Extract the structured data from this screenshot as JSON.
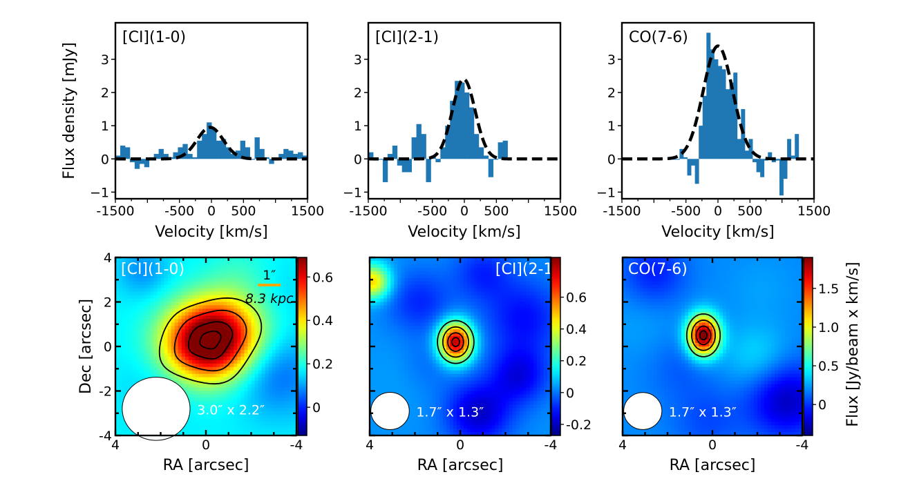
{
  "chart_data": [
    {
      "type": "bar",
      "title": "[CI](1-0)",
      "xlabel": "Velocity [km/s]",
      "ylabel": "Flux density [mJy]",
      "xlim": [
        -1500,
        1500
      ],
      "ylim": [
        -1.2,
        4.1
      ],
      "xticks": [
        -1500,
        -500,
        0,
        500,
        1500
      ],
      "xtick_labels": [
        "-1500",
        "-500",
        "0",
        "500",
        "1500"
      ],
      "yticks": [
        -1,
        0,
        1,
        2,
        3
      ],
      "ytick_labels": [
        "−1",
        "0",
        "1",
        "2",
        "3"
      ],
      "series": [
        {
          "name": "spectrum",
          "kind": "histogram",
          "bin_width": 75,
          "x": [
            -1462,
            -1387,
            -1312,
            -1237,
            -1162,
            -1087,
            -1012,
            -937,
            -862,
            -787,
            -712,
            -637,
            -562,
            -487,
            -412,
            -337,
            -262,
            -187,
            -112,
            -37,
            37,
            112,
            187,
            262,
            337,
            412,
            487,
            562,
            637,
            712,
            787,
            862,
            937,
            1012,
            1087,
            1162,
            1237,
            1312,
            1387,
            1462
          ],
          "values": [
            0.1,
            0.4,
            0.35,
            -0.1,
            -0.3,
            -0.15,
            -0.25,
            0.05,
            0.15,
            0.3,
            0.15,
            0.05,
            0.2,
            0.35,
            0.45,
            0.15,
            0.05,
            0.55,
            0.75,
            1.1,
            0.9,
            0.55,
            0.6,
            0.35,
            0.15,
            0.25,
            0.55,
            0.35,
            0.0,
            0.65,
            0.3,
            0.05,
            -0.15,
            -0.05,
            0.15,
            0.3,
            0.25,
            0.15,
            0.2,
            0.1
          ]
        },
        {
          "name": "gaussian fit",
          "kind": "line",
          "style": "dashed",
          "amplitude": 0.95,
          "center": -20,
          "fwhm": 480
        }
      ]
    },
    {
      "type": "bar",
      "title": "[CI](2-1)",
      "xlabel": "Velocity [km/s]",
      "ylabel": "",
      "xlim": [
        -1500,
        1500
      ],
      "ylim": [
        -1.2,
        4.1
      ],
      "xticks": [
        -1500,
        -500,
        0,
        500,
        1500
      ],
      "xtick_labels": [
        "-1500",
        "-500",
        "0",
        "500",
        "1500"
      ],
      "yticks": [
        -1,
        0,
        1,
        2,
        3
      ],
      "ytick_labels": [
        "−1",
        "0",
        "1",
        "2",
        "3"
      ],
      "series": [
        {
          "name": "spectrum",
          "kind": "histogram",
          "bin_width": 75,
          "x": [
            -1462,
            -1387,
            -1312,
            -1237,
            -1162,
            -1087,
            -1012,
            -937,
            -862,
            -787,
            -712,
            -637,
            -562,
            -487,
            -412,
            -337,
            -262,
            -187,
            -112,
            -37,
            37,
            112,
            187,
            262,
            337,
            412,
            487,
            562,
            637
          ],
          "values": [
            0.2,
            -0.05,
            0.0,
            -0.7,
            0.15,
            0.4,
            -0.2,
            -0.4,
            -0.4,
            0.65,
            1.05,
            0.75,
            -0.7,
            0.1,
            -0.1,
            0.35,
            1.0,
            1.75,
            2.35,
            2.3,
            2.0,
            1.55,
            0.75,
            0.35,
            0.1,
            -0.55,
            0.0,
            0.5,
            0.55
          ]
        },
        {
          "name": "gaussian fit",
          "kind": "line",
          "style": "dashed",
          "amplitude": 2.4,
          "center": -10,
          "fwhm": 420
        }
      ]
    },
    {
      "type": "bar",
      "title": "CO(7-6)",
      "xlabel": "Velocity [km/s]",
      "ylabel": "",
      "xlim": [
        -1500,
        1500
      ],
      "ylim": [
        -1.2,
        4.1
      ],
      "xticks": [
        -1500,
        -500,
        0,
        500,
        1500
      ],
      "xtick_labels": [
        "-1500",
        "-500",
        "0",
        "500",
        "1500"
      ],
      "yticks": [
        -1,
        0,
        1,
        2,
        3
      ],
      "ytick_labels": [
        "−1",
        "0",
        "1",
        "2",
        "3"
      ],
      "series": [
        {
          "name": "spectrum",
          "kind": "histogram",
          "bin_width": 60,
          "x": [
            -690,
            -630,
            -570,
            -510,
            -450,
            -390,
            -330,
            -270,
            -210,
            -150,
            -90,
            -30,
            30,
            90,
            150,
            210,
            270,
            330,
            390,
            450,
            510,
            570,
            630,
            690,
            750,
            810,
            870,
            930,
            990,
            1050,
            1110,
            1170,
            1230
          ],
          "values": [
            0.0,
            0.0,
            0.3,
            0.05,
            -0.5,
            -0.2,
            -0.75,
            1.0,
            1.9,
            3.8,
            3.3,
            3.0,
            2.8,
            2.7,
            2.1,
            2.3,
            2.6,
            0.6,
            1.5,
            0.25,
            0.6,
            -0.1,
            -0.4,
            -0.55,
            -0.05,
            0.2,
            -0.1,
            -0.05,
            -1.1,
            -0.6,
            0.6,
            0.1,
            0.75
          ]
        },
        {
          "name": "gaussian fit",
          "kind": "line",
          "style": "dashed",
          "amplitude": 3.4,
          "center": 0,
          "fwhm": 540
        }
      ]
    },
    {
      "type": "heatmap",
      "title": "[CI](1-0)",
      "xlabel": "RA [arcsec]",
      "ylabel": "Dec [arcsec]",
      "xlim": [
        4,
        -4
      ],
      "ylim": [
        -4,
        4
      ],
      "xticks": [
        4,
        0,
        -4
      ],
      "xtick_labels": [
        "4",
        "0",
        "-4"
      ],
      "yticks": [
        -4,
        -2,
        0,
        2,
        4
      ],
      "ytick_labels": [
        "-4",
        "-2",
        "0",
        "2",
        "4"
      ],
      "colormap": "jet",
      "clim": [
        -0.13,
        0.69
      ],
      "colorbar_ticks": [
        0,
        0.2,
        0.4,
        0.6
      ],
      "colorbar_tick_labels": [
        "0",
        "0.2",
        "0.4",
        "0.6"
      ],
      "peak": {
        "ra": -0.2,
        "dec": 0.3,
        "value": 0.68
      },
      "beam_label": "3.0″ x 2.2″",
      "beam": {
        "major_arcsec": 3.0,
        "minor_arcsec": 2.2,
        "center_ra": 2.2,
        "center_dec": -2.8
      },
      "scale_bar": {
        "label": "1″",
        "sublabel": "8.3 kpc",
        "length_arcsec": 1,
        "color": "#FFA500"
      }
    },
    {
      "type": "heatmap",
      "title": "[CI](2-1)",
      "xlabel": "RA [arcsec]",
      "ylabel": "",
      "xlim": [
        4,
        -4
      ],
      "ylim": [
        -4,
        4
      ],
      "xticks": [
        4,
        0,
        -4
      ],
      "xtick_labels": [
        "4",
        "0",
        "-4"
      ],
      "colormap": "jet",
      "clim": [
        -0.27,
        0.85
      ],
      "colorbar_ticks": [
        -0.2,
        0,
        0.2,
        0.4,
        0.6
      ],
      "colorbar_tick_labels": [
        "-0.2",
        "0",
        "0.2",
        "0.4",
        "0.6"
      ],
      "peak": {
        "ra": 0.2,
        "dec": 0.2,
        "value": 0.84
      },
      "beam_label": "1.7″ x 1.3″",
      "beam": {
        "major_arcsec": 1.7,
        "minor_arcsec": 1.3,
        "center_ra": 3.1,
        "center_dec": -2.9
      }
    },
    {
      "type": "heatmap",
      "title": "CO(7-6)",
      "xlabel": "RA [arcsec]",
      "ylabel": "",
      "xlim": [
        4,
        -4
      ],
      "ylim": [
        -4,
        4
      ],
      "xticks": [
        4,
        0,
        -4
      ],
      "xtick_labels": [
        "4",
        "0",
        "-4"
      ],
      "colormap": "jet",
      "clim": [
        -0.4,
        1.9
      ],
      "colorbar_ticks": [
        0,
        0.5,
        1.0,
        1.5
      ],
      "colorbar_tick_labels": [
        "0",
        "0.5",
        "1.0",
        "1.5"
      ],
      "colorbar_label": "Flux [Jy/beam x km/s]",
      "peak": {
        "ra": 0.4,
        "dec": 0.5,
        "value": 1.85
      },
      "beam_label": "1.7″ x 1.3″",
      "beam": {
        "major_arcsec": 1.7,
        "minor_arcsec": 1.3,
        "center_ra": 3.1,
        "center_dec": -2.9
      }
    }
  ]
}
